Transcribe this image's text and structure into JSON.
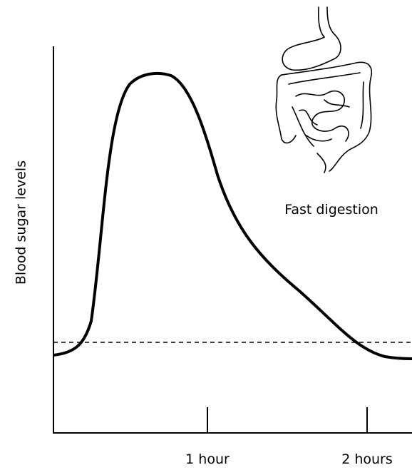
{
  "y_axis_label": "Blood sugar levels",
  "x_axis": {
    "tick_labels": [
      "1 hour",
      "2 hours"
    ]
  },
  "annotation": "Fast digestion"
}
